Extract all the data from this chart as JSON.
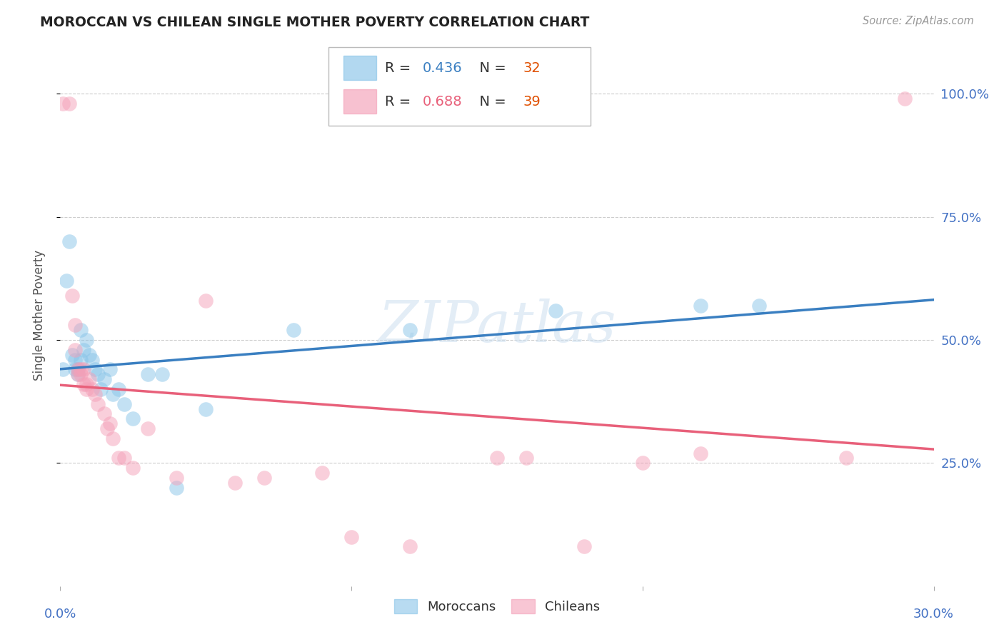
{
  "title": "MOROCCAN VS CHILEAN SINGLE MOTHER POVERTY CORRELATION CHART",
  "source": "Source: ZipAtlas.com",
  "ylabel": "Single Mother Poverty",
  "ytick_labels": [
    "25.0%",
    "50.0%",
    "75.0%",
    "100.0%"
  ],
  "ytick_vals": [
    0.25,
    0.5,
    0.75,
    1.0
  ],
  "xmin": 0.0,
  "xmax": 0.3,
  "ymin": 0.0,
  "ymax": 1.1,
  "moroccan_color": "#89c4e8",
  "chilean_color": "#f4a0b8",
  "moroccan_line_color": "#3a7fc1",
  "chilean_line_color": "#e8607a",
  "moroccan_R": 0.436,
  "moroccan_N": 32,
  "chilean_R": 0.688,
  "chilean_N": 39,
  "watermark": "ZIPatlas",
  "moroccan_points": [
    [
      0.001,
      0.44
    ],
    [
      0.002,
      0.62
    ],
    [
      0.003,
      0.7
    ],
    [
      0.004,
      0.47
    ],
    [
      0.005,
      0.46
    ],
    [
      0.005,
      0.44
    ],
    [
      0.006,
      0.44
    ],
    [
      0.006,
      0.43
    ],
    [
      0.007,
      0.52
    ],
    [
      0.007,
      0.46
    ],
    [
      0.008,
      0.48
    ],
    [
      0.009,
      0.5
    ],
    [
      0.01,
      0.47
    ],
    [
      0.011,
      0.46
    ],
    [
      0.012,
      0.44
    ],
    [
      0.013,
      0.43
    ],
    [
      0.014,
      0.4
    ],
    [
      0.015,
      0.42
    ],
    [
      0.017,
      0.44
    ],
    [
      0.018,
      0.39
    ],
    [
      0.02,
      0.4
    ],
    [
      0.022,
      0.37
    ],
    [
      0.025,
      0.34
    ],
    [
      0.03,
      0.43
    ],
    [
      0.035,
      0.43
    ],
    [
      0.04,
      0.2
    ],
    [
      0.05,
      0.36
    ],
    [
      0.08,
      0.52
    ],
    [
      0.12,
      0.52
    ],
    [
      0.17,
      0.56
    ],
    [
      0.22,
      0.57
    ],
    [
      0.24,
      0.57
    ]
  ],
  "chilean_points": [
    [
      0.001,
      0.98
    ],
    [
      0.003,
      0.98
    ],
    [
      0.004,
      0.59
    ],
    [
      0.005,
      0.48
    ],
    [
      0.005,
      0.53
    ],
    [
      0.006,
      0.44
    ],
    [
      0.006,
      0.43
    ],
    [
      0.007,
      0.44
    ],
    [
      0.007,
      0.43
    ],
    [
      0.008,
      0.44
    ],
    [
      0.008,
      0.41
    ],
    [
      0.009,
      0.4
    ],
    [
      0.009,
      0.41
    ],
    [
      0.01,
      0.42
    ],
    [
      0.011,
      0.4
    ],
    [
      0.012,
      0.39
    ],
    [
      0.013,
      0.37
    ],
    [
      0.015,
      0.35
    ],
    [
      0.016,
      0.32
    ],
    [
      0.017,
      0.33
    ],
    [
      0.018,
      0.3
    ],
    [
      0.02,
      0.26
    ],
    [
      0.022,
      0.26
    ],
    [
      0.025,
      0.24
    ],
    [
      0.03,
      0.32
    ],
    [
      0.04,
      0.22
    ],
    [
      0.05,
      0.58
    ],
    [
      0.06,
      0.21
    ],
    [
      0.07,
      0.22
    ],
    [
      0.09,
      0.23
    ],
    [
      0.1,
      0.1
    ],
    [
      0.12,
      0.08
    ],
    [
      0.15,
      0.26
    ],
    [
      0.16,
      0.26
    ],
    [
      0.18,
      0.08
    ],
    [
      0.2,
      0.25
    ],
    [
      0.22,
      0.27
    ],
    [
      0.27,
      0.26
    ],
    [
      0.29,
      0.99
    ]
  ]
}
